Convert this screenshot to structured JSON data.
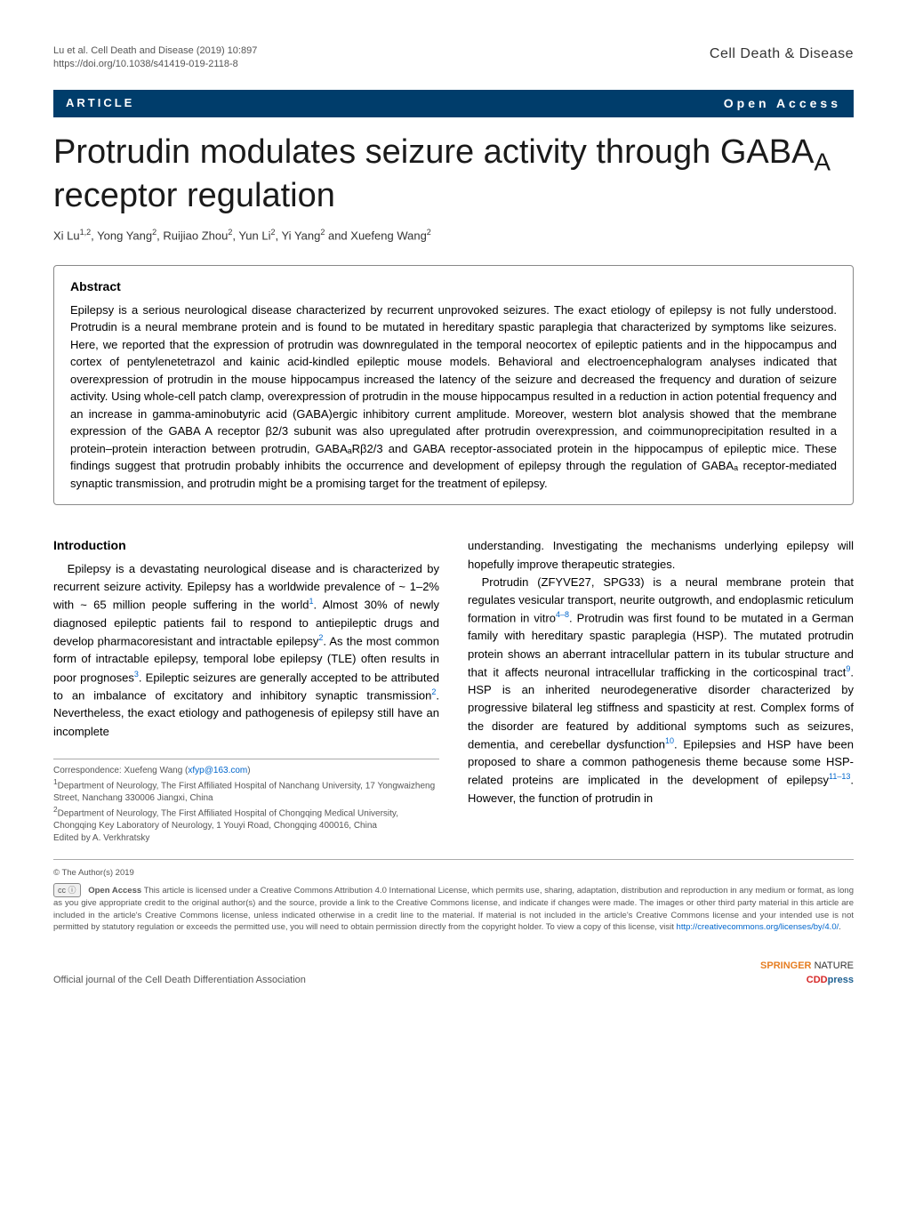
{
  "meta": {
    "citation": "Lu et al. Cell Death and Disease           (2019) 10:897",
    "doi": "https://doi.org/10.1038/s41419-019-2118-8",
    "journal": "Cell Death & Disease"
  },
  "bar": {
    "label": "ARTICLE",
    "access": "Open Access"
  },
  "title_a": "Protrudin modulates seizure activity through GABA",
  "title_sub": "A",
  "title_b": " receptor regulation",
  "authors_html": "Xi Lu<sup>1,2</sup>, Yong Yang<sup>2</sup>, Ruijiao Zhou<sup>2</sup>, Yun Li<sup>2</sup>, Yi Yang<sup>2</sup> and Xuefeng Wang<sup>2</sup>",
  "abstract": {
    "heading": "Abstract",
    "text": "Epilepsy is a serious neurological disease characterized by recurrent unprovoked seizures. The exact etiology of epilepsy is not fully understood. Protrudin is a neural membrane protein and is found to be mutated in hereditary spastic paraplegia that characterized by symptoms like seizures. Here, we reported that the expression of protrudin was downregulated in the temporal neocortex of epileptic patients and in the hippocampus and cortex of pentylenetetrazol and kainic acid-kindled epileptic mouse models. Behavioral and electroencephalogram analyses indicated that overexpression of protrudin in the mouse hippocampus increased the latency of the seizure and decreased the frequency and duration of seizure activity. Using whole-cell patch clamp, overexpression of protrudin in the mouse hippocampus resulted in a reduction in action potential frequency and an increase in gamma-aminobutyric acid (GABA)ergic inhibitory current amplitude. Moreover, western blot analysis showed that the membrane expression of the GABA A receptor β2/3 subunit was also upregulated after protrudin overexpression, and coimmunoprecipitation resulted in a protein–protein interaction between protrudin, GABAₐRβ2/3 and GABA receptor-associated protein in the hippocampus of epileptic mice. These findings suggest that protrudin probably inhibits the occurrence and development of epilepsy through the regulation of GABAₐ receptor-mediated synaptic transmission, and protrudin might be a promising target for the treatment of epilepsy."
  },
  "intro": {
    "heading": "Introduction",
    "p1_a": "Epilepsy is a devastating neurological disease and is characterized by recurrent seizure activity. Epilepsy has a worldwide prevalence of ~ 1–2% with ~ 65 million people suffering in the world",
    "p1_b": ". Almost 30% of newly diagnosed epileptic patients fail to respond to antiepileptic drugs and develop pharmacoresistant and intractable epilepsy",
    "p1_c": ". As the most common form of intractable epilepsy, temporal lobe epilepsy (TLE) often results in poor prognoses",
    "p1_d": ". Epileptic seizures are generally accepted to be attributed to an imbalance of excitatory and inhibitory synaptic transmission",
    "p1_e": ". Nevertheless, the exact etiology and pathogenesis of epilepsy still have an incomplete",
    "p2_top": "understanding. Investigating the mechanisms underlying epilepsy will hopefully improve therapeutic strategies.",
    "p2_a": "Protrudin (ZFYVE27, SPG33) is a neural membrane protein that regulates vesicular transport, neurite outgrowth, and endoplasmic reticulum formation in vitro",
    "p2_b": ". Protrudin was first found to be mutated in a German family with hereditary spastic paraplegia (HSP). The mutated protrudin protein shows an aberrant intracellular pattern in its tubular structure and that it affects neuronal intracellular trafficking in the corticospinal tract",
    "p2_c": ". HSP is an inherited neurodegenerative disorder characterized by progressive bilateral leg stiffness and spasticity at rest. Complex forms of the disorder are featured by additional symptoms such as seizures, dementia, and cerebellar dysfunction",
    "p2_d": ". Epilepsies and HSP have been proposed to share a common pathogenesis theme because some HSP-related proteins are implicated in the development of epilepsy",
    "p2_e": ". However, the function of protrudin in",
    "ref1": "1",
    "ref2": "2",
    "ref3": "3",
    "ref4_8": "4–8",
    "ref9": "9",
    "ref10": "10",
    "ref11_13": "11–13"
  },
  "correspondence": {
    "line1a": "Correspondence: Xuefeng Wang (",
    "email": "xfyp@163.com",
    "line1b": ")",
    "aff1": "Department of Neurology, The First Affiliated Hospital of Nanchang University, 17 Yongwaizheng Street, Nanchang 330006 Jiangxi, China",
    "aff2": "Department of Neurology, The First Affiliated Hospital of Chongqing Medical University, Chongqing Key Laboratory of Neurology, 1 Youyi Road, Chongqing 400016, China",
    "edited": "Edited by A. Verkhratsky"
  },
  "license": {
    "copyright": "© The Author(s) 2019",
    "cc": "cc ⓘ",
    "bold": "Open Access",
    "text": " This article is licensed under a Creative Commons Attribution 4.0 International License, which permits use, sharing, adaptation, distribution and reproduction in any medium or format, as long as you give appropriate credit to the original author(s) and the source, provide a link to the Creative Commons license, and indicate if changes were made. The images or other third party material in this article are included in the article's Creative Commons license, unless indicated otherwise in a credit line to the material. If material is not included in the article's Creative Commons license and your intended use is not permitted by statutory regulation or exceeds the permitted use, you will need to obtain permission directly from the copyright holder. To view a copy of this license, visit ",
    "link": "http://creativecommons.org/licenses/by/4.0/"
  },
  "footer": {
    "left": "Official journal of the Cell Death Differentiation Association",
    "springer": "SPRINGER",
    "nature": "NATURE",
    "cdd_red": "CDD",
    "cdd_blue": "press"
  }
}
